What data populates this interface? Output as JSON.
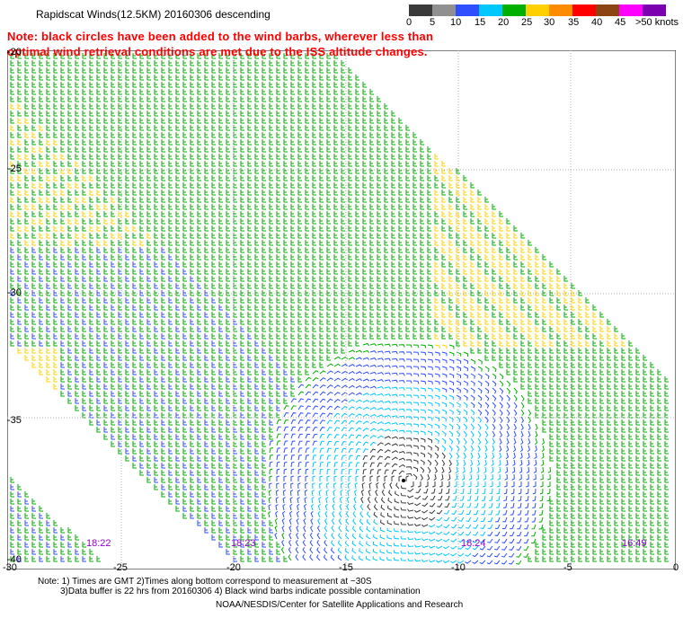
{
  "title": "Rapidscat Winds(12.5KM) 20160306 descending",
  "note": {
    "line1": "Note: black circles have been added to the wind barbs, wherever less than",
    "line2": "optimal wind retrieval conditions are met due to the ISS altitude changes."
  },
  "legend": {
    "labels": [
      "0",
      "5",
      "10",
      "15",
      "20",
      "25",
      "30",
      "35",
      "40",
      "45",
      ">50 knots"
    ],
    "colors": [
      "#3a3a3a",
      "#909090",
      "#2f4fff",
      "#00c8ff",
      "#00b000",
      "#ffd000",
      "#ff8c00",
      "#ff0000",
      "#8b4513",
      "#ff00ff",
      "#7b00b0"
    ]
  },
  "map": {
    "lat_labels": [
      "-20",
      "-25",
      "-30",
      "-35",
      "-40"
    ],
    "lon_labels": [
      "-30",
      "-25",
      "-20",
      "-15",
      "-10",
      "-5",
      "0"
    ],
    "pass_times": [
      "18:22",
      "18:23",
      "18:24",
      "16:49"
    ],
    "grid_color": "#b0b0b0",
    "time_color": "#9400d3"
  },
  "footer": {
    "line1": "Note: 1) Times are GMT 2)Times along bottom correspond to measurement at ~30S",
    "line2": "3)Data buffer is 22 hrs from 20160306 4) Black wind barbs indicate possible contamination",
    "line3": "NOAA/NESDIS/Center for Satellite Applications and Research"
  }
}
